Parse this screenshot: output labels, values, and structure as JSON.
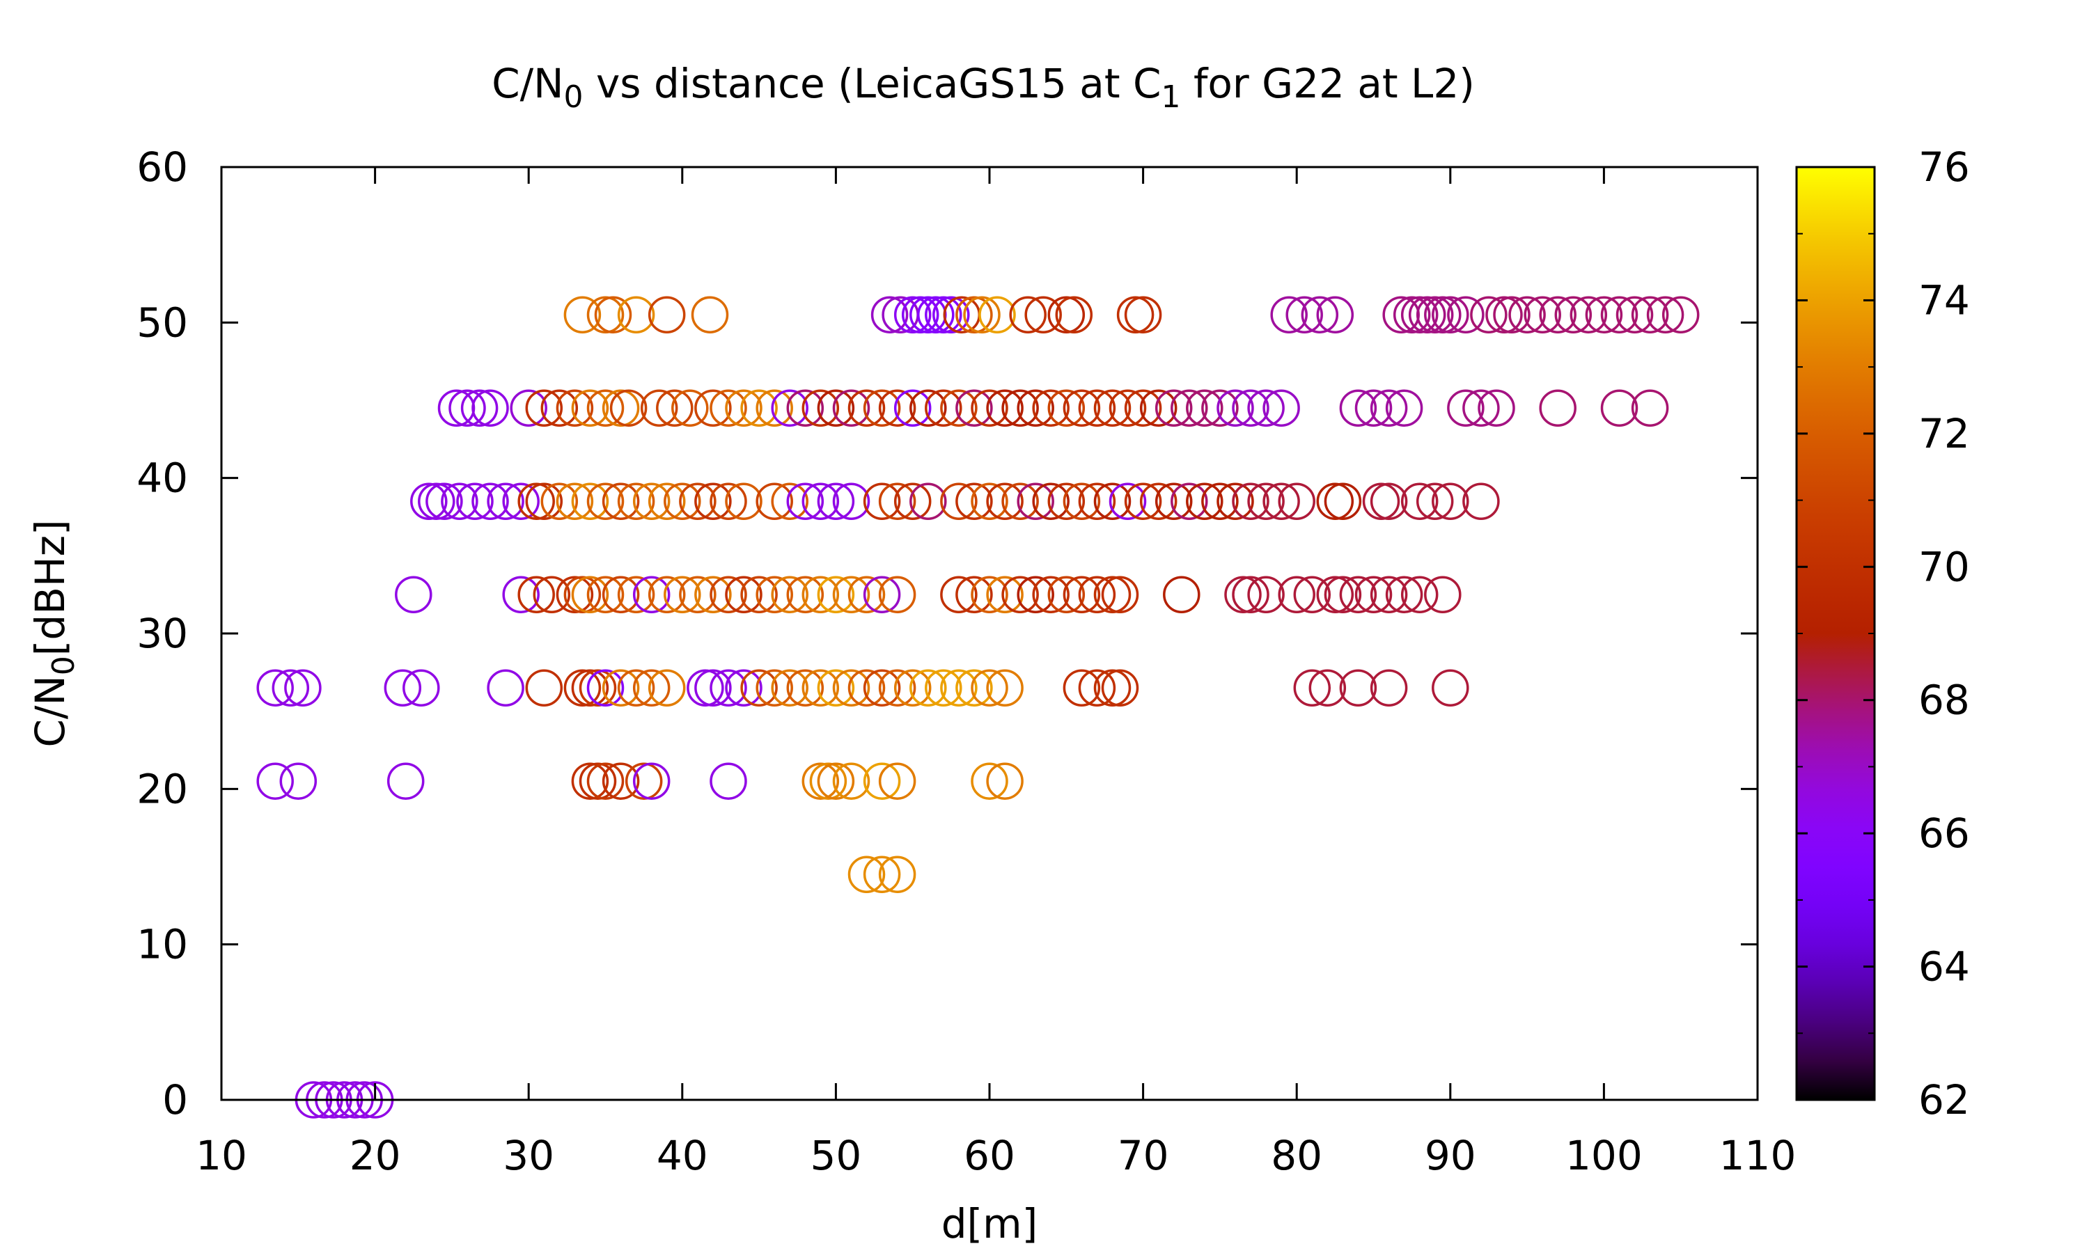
{
  "chart_data": {
    "type": "scatter",
    "title": {
      "pre": "C/N",
      "sub": "0",
      "mid": " vs distance (LeicaGS15 at C",
      "sub2": "1",
      "post": " for G22 at L2)"
    },
    "ylabel": {
      "pre": "C/N",
      "sub": "0",
      "post": "[dBHz]"
    },
    "xlabel": "d[m]",
    "xlim": [
      10,
      110
    ],
    "ylim": [
      0,
      60
    ],
    "xticks": [
      10,
      20,
      30,
      40,
      50,
      60,
      70,
      80,
      90,
      100,
      110
    ],
    "yticks": [
      0,
      10,
      20,
      30,
      40,
      50,
      60
    ],
    "colorbar": {
      "label_ticks": [
        62,
        64,
        66,
        68,
        70,
        72,
        74,
        76
      ],
      "range": [
        62,
        76
      ],
      "palette": "gnuplot"
    },
    "marker": "open-circle",
    "grid": false,
    "series": [
      {
        "y": 50.5,
        "points": [
          [
            33.5,
            73
          ],
          [
            35,
            72.5
          ],
          [
            35.5,
            72
          ],
          [
            37,
            73.5
          ],
          [
            39,
            71
          ],
          [
            41.8,
            72.5
          ],
          [
            53.5,
            67
          ],
          [
            54.2,
            67
          ],
          [
            55,
            66.2
          ],
          [
            55.5,
            66
          ],
          [
            56,
            65.8
          ],
          [
            56.5,
            65.8
          ],
          [
            57,
            65.9
          ],
          [
            57.5,
            66
          ],
          [
            58.2,
            70
          ],
          [
            59,
            72
          ],
          [
            59.5,
            73
          ],
          [
            60.5,
            74
          ],
          [
            62.5,
            70
          ],
          [
            63.5,
            70
          ],
          [
            65,
            69.5
          ],
          [
            65.5,
            70
          ],
          [
            69.5,
            70
          ],
          [
            70,
            70
          ],
          [
            79.5,
            67.5
          ],
          [
            80.5,
            67.5
          ],
          [
            81.5,
            67.5
          ],
          [
            82.5,
            67.5
          ],
          [
            86.8,
            67.8
          ],
          [
            87.5,
            67.8
          ],
          [
            88,
            67.8
          ],
          [
            88.5,
            67.8
          ],
          [
            89,
            67.8
          ],
          [
            89.5,
            67.8
          ],
          [
            90,
            67.8
          ],
          [
            91,
            67.8
          ],
          [
            92.5,
            68
          ],
          [
            93.5,
            68
          ],
          [
            94,
            68
          ],
          [
            95,
            68
          ],
          [
            96,
            68
          ],
          [
            97,
            68
          ],
          [
            98,
            68
          ],
          [
            99,
            68
          ],
          [
            100,
            68
          ],
          [
            101,
            68
          ],
          [
            102,
            68
          ],
          [
            103,
            68
          ],
          [
            104,
            68
          ],
          [
            105,
            68
          ]
        ]
      },
      {
        "y": 44.5,
        "points": [
          [
            25.3,
            66.5
          ],
          [
            26,
            66.5
          ],
          [
            26.8,
            66.5
          ],
          [
            27.5,
            66.5
          ],
          [
            30,
            66.8
          ],
          [
            31,
            70
          ],
          [
            32,
            70
          ],
          [
            33,
            71
          ],
          [
            34,
            73
          ],
          [
            35,
            72
          ],
          [
            36,
            73
          ],
          [
            36.5,
            71
          ],
          [
            38.5,
            71
          ],
          [
            39.5,
            71
          ],
          [
            40.5,
            72
          ],
          [
            42,
            71
          ],
          [
            43,
            72
          ],
          [
            44,
            73
          ],
          [
            45,
            73.5
          ],
          [
            46,
            73
          ],
          [
            47,
            66.5
          ],
          [
            48,
            68
          ],
          [
            49,
            70
          ],
          [
            50,
            69
          ],
          [
            51,
            68
          ],
          [
            52,
            70
          ],
          [
            53,
            71
          ],
          [
            54,
            70
          ],
          [
            55,
            66
          ],
          [
            56,
            69
          ],
          [
            57,
            70
          ],
          [
            58,
            71
          ],
          [
            59,
            68
          ],
          [
            60,
            70
          ],
          [
            61,
            69
          ],
          [
            62,
            69
          ],
          [
            63,
            69
          ],
          [
            64,
            70
          ],
          [
            65,
            71
          ],
          [
            66,
            70
          ],
          [
            67,
            70
          ],
          [
            68,
            70
          ],
          [
            69,
            70
          ],
          [
            70,
            70
          ],
          [
            71,
            69
          ],
          [
            72,
            68
          ],
          [
            73,
            68
          ],
          [
            74,
            68
          ],
          [
            75,
            68
          ],
          [
            76,
            67
          ],
          [
            77,
            67
          ],
          [
            78,
            67
          ],
          [
            79,
            67
          ],
          [
            84,
            67.5
          ],
          [
            85,
            67.5
          ],
          [
            86,
            67.5
          ],
          [
            87,
            67.5
          ],
          [
            91,
            67.8
          ],
          [
            92,
            67.8
          ],
          [
            93,
            67.8
          ],
          [
            97,
            68
          ],
          [
            101,
            68
          ],
          [
            103,
            68
          ]
        ]
      },
      {
        "y": 38.5,
        "points": [
          [
            23.5,
            66.5
          ],
          [
            24,
            66.5
          ],
          [
            24.5,
            66.5
          ],
          [
            25.5,
            66.5
          ],
          [
            26.5,
            66.5
          ],
          [
            27.5,
            66.5
          ],
          [
            28.5,
            66.5
          ],
          [
            29.5,
            66.5
          ],
          [
            30.5,
            70
          ],
          [
            31,
            70
          ],
          [
            32,
            72
          ],
          [
            33,
            73
          ],
          [
            34,
            73.5
          ],
          [
            35,
            72
          ],
          [
            36,
            71
          ],
          [
            37,
            72
          ],
          [
            38,
            73
          ],
          [
            39,
            73
          ],
          [
            40,
            72
          ],
          [
            41,
            71
          ],
          [
            42,
            70
          ],
          [
            43,
            71
          ],
          [
            44,
            72
          ],
          [
            46,
            71
          ],
          [
            47,
            72
          ],
          [
            48,
            66.5
          ],
          [
            49,
            66.5
          ],
          [
            50,
            66.5
          ],
          [
            51,
            66.5
          ],
          [
            53,
            70
          ],
          [
            54,
            71
          ],
          [
            55,
            70
          ],
          [
            56,
            68
          ],
          [
            58,
            71
          ],
          [
            59,
            70
          ],
          [
            60,
            72
          ],
          [
            61,
            70
          ],
          [
            62,
            71
          ],
          [
            63,
            68
          ],
          [
            64,
            69
          ],
          [
            65,
            70
          ],
          [
            66,
            71
          ],
          [
            67,
            70
          ],
          [
            68,
            69
          ],
          [
            69,
            66.5
          ],
          [
            70,
            70
          ],
          [
            71,
            70
          ],
          [
            72,
            69
          ],
          [
            73,
            68
          ],
          [
            74,
            69
          ],
          [
            75,
            69
          ],
          [
            76,
            69
          ],
          [
            77,
            68.5
          ],
          [
            78,
            68.5
          ],
          [
            79,
            68.5
          ],
          [
            80,
            68.5
          ],
          [
            82.5,
            69
          ],
          [
            83,
            69
          ],
          [
            85.5,
            68.5
          ],
          [
            86,
            68.5
          ],
          [
            88,
            68.5
          ],
          [
            89,
            68.5
          ],
          [
            90,
            68.5
          ],
          [
            92,
            68.5
          ]
        ]
      },
      {
        "y": 32.5,
        "points": [
          [
            22.5,
            66.5
          ],
          [
            29.5,
            66.5
          ],
          [
            30.5,
            70
          ],
          [
            31.5,
            70
          ],
          [
            33,
            70
          ],
          [
            33.5,
            71
          ],
          [
            34,
            73
          ],
          [
            35,
            72
          ],
          [
            36,
            71
          ],
          [
            37,
            72
          ],
          [
            38,
            66.5
          ],
          [
            39,
            72
          ],
          [
            40,
            73
          ],
          [
            41,
            72
          ],
          [
            42,
            73
          ],
          [
            43,
            71
          ],
          [
            44,
            70
          ],
          [
            45,
            71
          ],
          [
            46,
            72
          ],
          [
            47,
            73
          ],
          [
            48,
            72
          ],
          [
            49,
            73
          ],
          [
            50,
            74
          ],
          [
            51,
            73
          ],
          [
            52,
            72.5
          ],
          [
            53,
            67
          ],
          [
            54,
            72
          ],
          [
            58,
            70
          ],
          [
            59,
            70
          ],
          [
            60,
            72
          ],
          [
            61,
            73
          ],
          [
            62,
            70
          ],
          [
            63,
            69
          ],
          [
            64,
            70
          ],
          [
            65,
            71
          ],
          [
            66,
            70
          ],
          [
            67,
            70
          ],
          [
            68,
            70
          ],
          [
            68.5,
            70
          ],
          [
            72.5,
            69
          ],
          [
            76.5,
            68.5
          ],
          [
            77,
            68.5
          ],
          [
            78,
            68.5
          ],
          [
            80,
            68.5
          ],
          [
            81,
            68.5
          ],
          [
            82.5,
            68.5
          ],
          [
            83,
            68.5
          ],
          [
            84,
            68.5
          ],
          [
            85,
            68.5
          ],
          [
            86,
            68.5
          ],
          [
            87,
            68.5
          ],
          [
            88,
            68.5
          ],
          [
            89.5,
            68.5
          ]
        ]
      },
      {
        "y": 26.5,
        "points": [
          [
            13.5,
            66.5
          ],
          [
            14.5,
            66.5
          ],
          [
            15.3,
            66.5
          ],
          [
            21.8,
            66.5
          ],
          [
            23,
            66.5
          ],
          [
            28.5,
            66.5
          ],
          [
            31,
            70
          ],
          [
            33.5,
            70
          ],
          [
            34,
            70
          ],
          [
            34.5,
            70.5
          ],
          [
            35,
            66
          ],
          [
            36,
            73
          ],
          [
            37,
            72
          ],
          [
            38,
            72
          ],
          [
            39,
            73
          ],
          [
            41.5,
            66.5
          ],
          [
            42,
            66.5
          ],
          [
            43,
            66.5
          ],
          [
            44,
            66.5
          ],
          [
            45,
            71
          ],
          [
            46,
            72
          ],
          [
            47,
            73
          ],
          [
            48,
            72
          ],
          [
            49,
            73
          ],
          [
            50,
            74
          ],
          [
            51,
            73
          ],
          [
            52,
            72
          ],
          [
            53,
            71
          ],
          [
            54,
            72
          ],
          [
            55,
            73
          ],
          [
            56,
            74
          ],
          [
            57,
            74
          ],
          [
            58,
            74
          ],
          [
            59,
            74
          ],
          [
            60,
            73
          ],
          [
            61,
            73
          ],
          [
            66,
            70
          ],
          [
            67,
            70
          ],
          [
            68,
            70
          ],
          [
            68.5,
            70
          ],
          [
            81,
            68.5
          ],
          [
            82,
            68.5
          ],
          [
            84,
            68.5
          ],
          [
            86,
            68.5
          ],
          [
            90,
            68.5
          ]
        ]
      },
      {
        "y": 20.5,
        "points": [
          [
            13.5,
            66.5
          ],
          [
            15,
            66.5
          ],
          [
            22,
            66.5
          ],
          [
            34,
            70
          ],
          [
            34.5,
            70
          ],
          [
            35,
            70.5
          ],
          [
            36,
            70
          ],
          [
            37.5,
            71
          ],
          [
            38,
            66.5
          ],
          [
            43,
            66.5
          ],
          [
            49,
            73
          ],
          [
            49.5,
            73.5
          ],
          [
            50,
            73
          ],
          [
            51,
            73.5
          ],
          [
            53,
            74
          ],
          [
            54,
            73
          ],
          [
            60,
            73.5
          ],
          [
            61,
            73
          ]
        ]
      },
      {
        "y": 14.5,
        "points": [
          [
            52,
            73.5
          ],
          [
            53,
            73.5
          ],
          [
            54,
            73.5
          ]
        ]
      },
      {
        "y": 0,
        "points": [
          [
            16,
            66.5
          ],
          [
            16.7,
            66.5
          ],
          [
            17.3,
            66.5
          ],
          [
            18,
            66.5
          ],
          [
            18.7,
            66.5
          ],
          [
            19.3,
            66.5
          ],
          [
            20,
            66.5
          ]
        ]
      }
    ]
  }
}
